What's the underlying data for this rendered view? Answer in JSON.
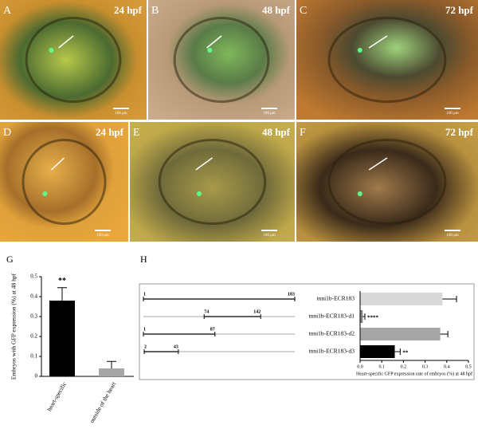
{
  "panels": [
    {
      "label": "A",
      "time": "24 hpf",
      "scale": "100 μm"
    },
    {
      "label": "B",
      "time": "48 hpf",
      "scale": "100 μm"
    },
    {
      "label": "C",
      "time": "72 hpf",
      "scale": "100 μm"
    },
    {
      "label": "D",
      "time": "24 hpf",
      "scale": "100 μm"
    },
    {
      "label": "E",
      "time": "48 hpf",
      "scale": "100 μm"
    },
    {
      "label": "F",
      "time": "72 hpf",
      "scale": "100 μm"
    }
  ],
  "chart_data": [
    {
      "type": "bar",
      "panel": "G",
      "ylabel": "Embryos with GFP expression (%) at 48 hpf",
      "categories": [
        "heart-specific",
        "outside of the heart"
      ],
      "values": [
        0.38,
        0.04
      ],
      "errors": [
        0.065,
        0.035
      ],
      "colors": [
        "#000000",
        "#a6a6a6"
      ],
      "annotations": [
        {
          "index": 0,
          "text": "**"
        }
      ],
      "ylim": [
        0,
        0.5
      ],
      "yticks": [
        0,
        0.1,
        0.2,
        0.3,
        0.4,
        0.5
      ]
    },
    {
      "type": "bar",
      "orientation": "horizontal",
      "panel": "H",
      "categories": [
        "tnni1b-ECR183",
        "tnni1b-ECR183-d1",
        "tnni1b-ECR183-d2",
        "tnni1b-ECR183-d3"
      ],
      "values": [
        0.38,
        0.012,
        0.37,
        0.16
      ],
      "errors": [
        0.065,
        0.01,
        0.035,
        0.025
      ],
      "colors": [
        "#d9d9d9",
        "#7f7f7f",
        "#a6a6a6",
        "#000000"
      ],
      "annotations": [
        {
          "index": 1,
          "text": "****"
        },
        {
          "index": 3,
          "text": "**"
        }
      ],
      "constructs": [
        {
          "range": [
            1,
            183
          ]
        },
        {
          "range": [
            74,
            142
          ]
        },
        {
          "range": [
            1,
            87
          ]
        },
        {
          "range": [
            2,
            43
          ]
        }
      ],
      "xlabel": "Heart-specific GFP expression rate of embryos (%) at 48 hpf",
      "xlim": [
        0,
        0.5
      ],
      "xticks": [
        {
          "value": 0,
          "label": "0.0"
        },
        0.1,
        0.2,
        0.3,
        0.4,
        0.5
      ]
    }
  ]
}
